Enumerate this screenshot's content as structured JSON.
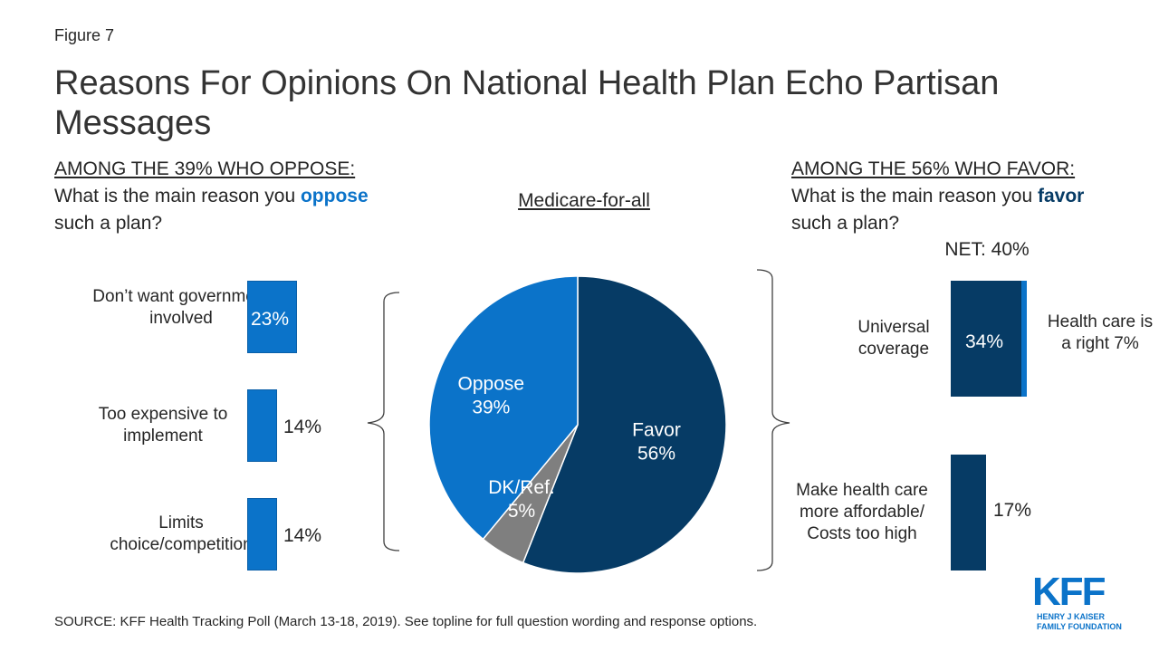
{
  "figure_label": "Figure 7",
  "title": "Reasons For Opinions On National Health Plan Echo Partisan Messages",
  "left_question": {
    "underlined": "AMONG THE 39% WHO OPPOSE:",
    "pre": " What is the main reason you ",
    "emph": "oppose",
    "post": " such a plan?"
  },
  "right_question": {
    "underlined": "AMONG THE 56% WHO FAVOR:",
    "pre": " What is the main reason you ",
    "emph": "favor",
    "post": " such a plan?"
  },
  "center_title": "Medicare-for-all",
  "net_label": "NET: 40%",
  "source": "SOURCE: KFF Health Tracking Poll (March 13-18, 2019). See topline for full question wording and response options.",
  "logo": {
    "main": "KFF",
    "sub1": "HENRY J KAISER",
    "sub2": "FAMILY FOUNDATION"
  },
  "colors": {
    "blue": "#0b73c9",
    "navy": "#063b65",
    "gray": "#7f7f7f"
  },
  "chart_data": [
    {
      "type": "pie",
      "title": "Medicare-for-all",
      "slices": [
        {
          "label": "Favor",
          "value": 56,
          "value_label": "56%",
          "color": "#063b65"
        },
        {
          "label": "DK/Ref.",
          "value": 5,
          "value_label": "5%",
          "color": "#7f7f7f"
        },
        {
          "label": "Oppose",
          "value": 39,
          "value_label": "39%",
          "color": "#0b73c9"
        }
      ]
    },
    {
      "type": "bar",
      "title": "AMONG THE 39% WHO OPPOSE: What is the main reason you oppose such a plan?",
      "categories": [
        "Don’t want government involved",
        "Too expensive to implement",
        "Limits choice/competition"
      ],
      "values": [
        23,
        14,
        14
      ],
      "value_labels": [
        "23%",
        "14%",
        "14%"
      ],
      "color": "#0b73c9"
    },
    {
      "type": "bar",
      "title": "AMONG THE 56% WHO FAVOR: What is the main reason you favor such a plan?",
      "categories": [
        "Universal coverage",
        "Make health care more affordable/ Costs too high"
      ],
      "series": [
        {
          "name": "Universal coverage",
          "values": [
            34,
            17
          ],
          "value_labels": [
            "34%",
            "17%"
          ],
          "color": "#063b65"
        },
        {
          "name": "Health care is a right",
          "values": [
            7,
            0
          ],
          "value_labels": [
            "7%",
            ""
          ],
          "color": "#0b73c9"
        }
      ],
      "net_label": "NET: 40%",
      "segment_label": "Health care is a right 7%"
    }
  ]
}
